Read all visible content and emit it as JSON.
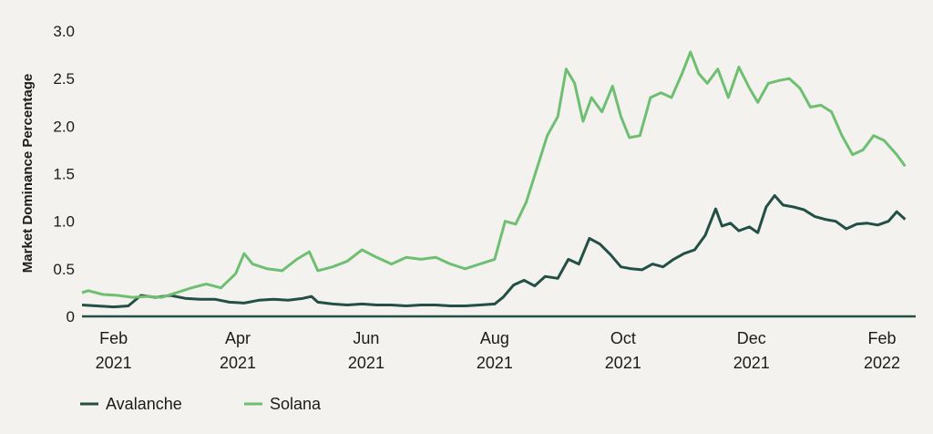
{
  "chart_data": {
    "type": "line",
    "title": "",
    "xlabel": "",
    "ylabel": "Market Dominance Percentage",
    "ylim": [
      0,
      3.0
    ],
    "yticks": [
      "0",
      "0.5",
      "1.0",
      "1.5",
      "2.0",
      "2.5",
      "3.0"
    ],
    "xlim": [
      "2021-01-17",
      "2022-02-17"
    ],
    "xticks": [
      {
        "date": "2021-02-01",
        "month": "Feb",
        "year": "2021"
      },
      {
        "date": "2021-04-01",
        "month": "Apr",
        "year": "2021"
      },
      {
        "date": "2021-06-01",
        "month": "Jun",
        "year": "2021"
      },
      {
        "date": "2021-08-01",
        "month": "Aug",
        "year": "2021"
      },
      {
        "date": "2021-10-01",
        "month": "Oct",
        "year": "2021"
      },
      {
        "date": "2021-12-01",
        "month": "Dec",
        "year": "2021"
      },
      {
        "date": "2022-02-01",
        "month": "Feb",
        "year": "2022"
      }
    ],
    "legend_position": "bottom-left",
    "grid": false,
    "series": [
      {
        "name": "Avalanche",
        "color": "#234f46",
        "points": [
          [
            "2021-01-17",
            0.12
          ],
          [
            "2021-01-24",
            0.11
          ],
          [
            "2021-02-01",
            0.1
          ],
          [
            "2021-02-08",
            0.11
          ],
          [
            "2021-02-14",
            0.22
          ],
          [
            "2021-02-21",
            0.2
          ],
          [
            "2021-02-28",
            0.22
          ],
          [
            "2021-03-07",
            0.19
          ],
          [
            "2021-03-14",
            0.18
          ],
          [
            "2021-03-21",
            0.18
          ],
          [
            "2021-03-28",
            0.15
          ],
          [
            "2021-04-04",
            0.14
          ],
          [
            "2021-04-11",
            0.17
          ],
          [
            "2021-04-18",
            0.18
          ],
          [
            "2021-04-25",
            0.17
          ],
          [
            "2021-05-02",
            0.19
          ],
          [
            "2021-05-06",
            0.21
          ],
          [
            "2021-05-09",
            0.15
          ],
          [
            "2021-05-16",
            0.13
          ],
          [
            "2021-05-23",
            0.12
          ],
          [
            "2021-05-30",
            0.13
          ],
          [
            "2021-06-06",
            0.12
          ],
          [
            "2021-06-13",
            0.12
          ],
          [
            "2021-06-20",
            0.11
          ],
          [
            "2021-06-27",
            0.12
          ],
          [
            "2021-07-04",
            0.12
          ],
          [
            "2021-07-11",
            0.11
          ],
          [
            "2021-07-18",
            0.11
          ],
          [
            "2021-07-25",
            0.12
          ],
          [
            "2021-08-01",
            0.13
          ],
          [
            "2021-08-05",
            0.2
          ],
          [
            "2021-08-10",
            0.33
          ],
          [
            "2021-08-15",
            0.38
          ],
          [
            "2021-08-20",
            0.32
          ],
          [
            "2021-08-25",
            0.42
          ],
          [
            "2021-08-31",
            0.4
          ],
          [
            "2021-09-05",
            0.6
          ],
          [
            "2021-09-10",
            0.55
          ],
          [
            "2021-09-15",
            0.82
          ],
          [
            "2021-09-20",
            0.76
          ],
          [
            "2021-09-25",
            0.65
          ],
          [
            "2021-09-30",
            0.52
          ],
          [
            "2021-10-05",
            0.5
          ],
          [
            "2021-10-10",
            0.49
          ],
          [
            "2021-10-15",
            0.55
          ],
          [
            "2021-10-20",
            0.52
          ],
          [
            "2021-10-25",
            0.6
          ],
          [
            "2021-10-30",
            0.66
          ],
          [
            "2021-11-04",
            0.7
          ],
          [
            "2021-11-09",
            0.85
          ],
          [
            "2021-11-14",
            1.13
          ],
          [
            "2021-11-17",
            0.95
          ],
          [
            "2021-11-21",
            0.98
          ],
          [
            "2021-11-25",
            0.9
          ],
          [
            "2021-11-30",
            0.94
          ],
          [
            "2021-12-04",
            0.88
          ],
          [
            "2021-12-08",
            1.15
          ],
          [
            "2021-12-12",
            1.27
          ],
          [
            "2021-12-16",
            1.17
          ],
          [
            "2021-12-21",
            1.15
          ],
          [
            "2021-12-26",
            1.12
          ],
          [
            "2021-12-31",
            1.05
          ],
          [
            "2022-01-05",
            1.02
          ],
          [
            "2022-01-10",
            1.0
          ],
          [
            "2022-01-15",
            0.92
          ],
          [
            "2022-01-20",
            0.97
          ],
          [
            "2022-01-25",
            0.98
          ],
          [
            "2022-01-30",
            0.96
          ],
          [
            "2022-02-04",
            1.0
          ],
          [
            "2022-02-08",
            1.1
          ],
          [
            "2022-02-12",
            1.02
          ]
        ]
      },
      {
        "name": "Solana",
        "color": "#6fbf73",
        "points": [
          [
            "2021-01-17",
            0.25
          ],
          [
            "2021-01-20",
            0.27
          ],
          [
            "2021-01-27",
            0.23
          ],
          [
            "2021-02-03",
            0.22
          ],
          [
            "2021-02-10",
            0.2
          ],
          [
            "2021-02-17",
            0.21
          ],
          [
            "2021-02-24",
            0.2
          ],
          [
            "2021-03-03",
            0.25
          ],
          [
            "2021-03-10",
            0.3
          ],
          [
            "2021-03-17",
            0.34
          ],
          [
            "2021-03-24",
            0.3
          ],
          [
            "2021-03-31",
            0.45
          ],
          [
            "2021-04-04",
            0.66
          ],
          [
            "2021-04-08",
            0.55
          ],
          [
            "2021-04-15",
            0.5
          ],
          [
            "2021-04-22",
            0.48
          ],
          [
            "2021-04-29",
            0.6
          ],
          [
            "2021-05-05",
            0.68
          ],
          [
            "2021-05-09",
            0.48
          ],
          [
            "2021-05-16",
            0.52
          ],
          [
            "2021-05-23",
            0.58
          ],
          [
            "2021-05-30",
            0.7
          ],
          [
            "2021-06-06",
            0.62
          ],
          [
            "2021-06-13",
            0.55
          ],
          [
            "2021-06-20",
            0.62
          ],
          [
            "2021-06-27",
            0.6
          ],
          [
            "2021-07-04",
            0.62
          ],
          [
            "2021-07-11",
            0.55
          ],
          [
            "2021-07-18",
            0.5
          ],
          [
            "2021-07-25",
            0.55
          ],
          [
            "2021-08-01",
            0.6
          ],
          [
            "2021-08-06",
            1.0
          ],
          [
            "2021-08-11",
            0.97
          ],
          [
            "2021-08-16",
            1.2
          ],
          [
            "2021-08-21",
            1.55
          ],
          [
            "2021-08-26",
            1.9
          ],
          [
            "2021-08-31",
            2.1
          ],
          [
            "2021-09-04",
            2.6
          ],
          [
            "2021-09-08",
            2.45
          ],
          [
            "2021-09-12",
            2.05
          ],
          [
            "2021-09-16",
            2.3
          ],
          [
            "2021-09-21",
            2.15
          ],
          [
            "2021-09-26",
            2.42
          ],
          [
            "2021-09-30",
            2.1
          ],
          [
            "2021-10-04",
            1.88
          ],
          [
            "2021-10-09",
            1.9
          ],
          [
            "2021-10-14",
            2.3
          ],
          [
            "2021-10-19",
            2.35
          ],
          [
            "2021-10-24",
            2.3
          ],
          [
            "2021-10-29",
            2.55
          ],
          [
            "2021-11-02",
            2.78
          ],
          [
            "2021-11-06",
            2.55
          ],
          [
            "2021-11-10",
            2.45
          ],
          [
            "2021-11-15",
            2.6
          ],
          [
            "2021-11-20",
            2.3
          ],
          [
            "2021-11-25",
            2.62
          ],
          [
            "2021-11-30",
            2.4
          ],
          [
            "2021-12-04",
            2.25
          ],
          [
            "2021-12-09",
            2.45
          ],
          [
            "2021-12-14",
            2.48
          ],
          [
            "2021-12-19",
            2.5
          ],
          [
            "2021-12-24",
            2.4
          ],
          [
            "2021-12-29",
            2.2
          ],
          [
            "2022-01-03",
            2.22
          ],
          [
            "2022-01-08",
            2.15
          ],
          [
            "2022-01-13",
            1.9
          ],
          [
            "2022-01-18",
            1.7
          ],
          [
            "2022-01-23",
            1.75
          ],
          [
            "2022-01-28",
            1.9
          ],
          [
            "2022-02-02",
            1.85
          ],
          [
            "2022-02-08",
            1.7
          ],
          [
            "2022-02-12",
            1.58
          ]
        ]
      }
    ]
  }
}
